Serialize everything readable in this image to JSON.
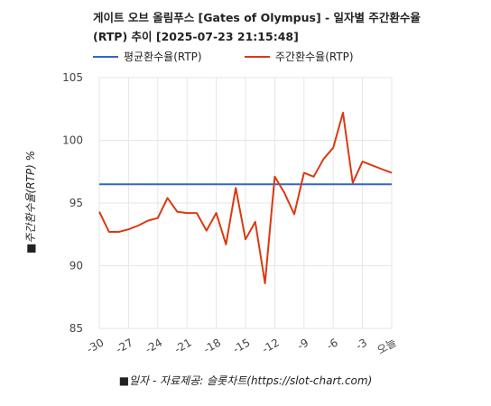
{
  "chart_data": {
    "type": "line",
    "title_line1": "게이트 오브 올림푸스 [Gates of Olympus] - 일자별 주간환수율",
    "title_line2": "(RTP) 추이 [2025-07-23 21:15:48]",
    "xlabel": "■일자 - 자료제공: 슬롯차트(https://slot-chart.com)",
    "ylabel": "■주간환수율(RTP) %",
    "ylim": [
      85,
      105
    ],
    "yticks": [
      "85",
      "90",
      "95",
      "100",
      "105"
    ],
    "x": [
      -30,
      -29,
      -28,
      -27,
      -26,
      -25,
      -24,
      -23,
      -22,
      -21,
      -20,
      -19,
      -18,
      -17,
      -16,
      -15,
      -14,
      -13,
      -12,
      -11,
      -10,
      -9,
      -8,
      -7,
      -6,
      -5,
      -4,
      -3,
      -2,
      -1,
      0
    ],
    "xticks": [
      "-30",
      "-27",
      "-24",
      "-21",
      "-18",
      "-15",
      "-12",
      "-9",
      "-6",
      "-3",
      "오늘"
    ],
    "legend_position": "top",
    "grid": true,
    "series": [
      {
        "name": "평균환수율(RTP)",
        "color": "#3366cc",
        "values": [
          96.5,
          96.5,
          96.5,
          96.5,
          96.5,
          96.5,
          96.5,
          96.5,
          96.5,
          96.5,
          96.5,
          96.5,
          96.5,
          96.5,
          96.5,
          96.5,
          96.5,
          96.5,
          96.5,
          96.5,
          96.5,
          96.5,
          96.5,
          96.5,
          96.5,
          96.5,
          96.5,
          96.5,
          96.5,
          96.5,
          96.5
        ]
      },
      {
        "name": "주간환수율(RTP)",
        "color": "#dc3912",
        "values": [
          94.3,
          92.7,
          92.7,
          92.9,
          93.2,
          93.6,
          93.8,
          95.4,
          94.3,
          94.2,
          94.2,
          92.8,
          94.2,
          91.7,
          96.2,
          92.1,
          93.5,
          88.6,
          97.1,
          95.8,
          94.1,
          97.4,
          97.1,
          98.5,
          99.4,
          102.2,
          96.6,
          98.3,
          98.0,
          97.7,
          97.4
        ]
      }
    ]
  }
}
